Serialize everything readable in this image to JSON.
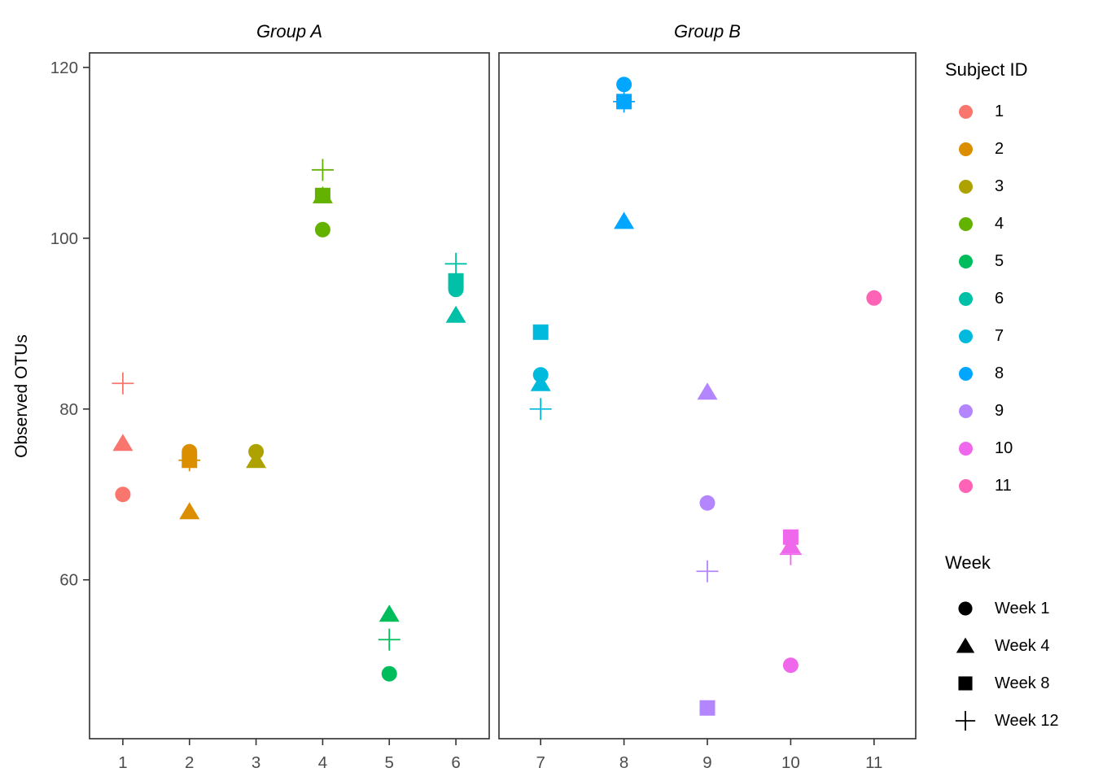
{
  "chart_data": {
    "type": "scatter",
    "title": "",
    "xlabel": "",
    "ylabel": "Observed OTUs",
    "ylim": [
      41.4,
      121.7
    ],
    "yticks": [
      60,
      80,
      100,
      120
    ],
    "grid": "off",
    "legend_position": "right",
    "facets": [
      {
        "label": "Group A",
        "subjects": [
          "1",
          "2",
          "3",
          "4",
          "5",
          "6"
        ]
      },
      {
        "label": "Group B",
        "subjects": [
          "7",
          "8",
          "9",
          "10",
          "11"
        ]
      }
    ],
    "weeks": [
      {
        "name": "Week 1",
        "shape": "circle"
      },
      {
        "name": "Week 4",
        "shape": "triangle"
      },
      {
        "name": "Week 8",
        "shape": "square"
      },
      {
        "name": "Week 12",
        "shape": "plus"
      }
    ],
    "subjects": [
      {
        "id": "1",
        "facet": 0,
        "color": "#F8766D",
        "values": {
          "Week 1": 70,
          "Week 4": 76,
          "Week 12": 83
        }
      },
      {
        "id": "2",
        "facet": 0,
        "color": "#DB8E00",
        "values": {
          "Week 1": 75,
          "Week 4": 68,
          "Week 8": 74,
          "Week 12": 74
        }
      },
      {
        "id": "3",
        "facet": 0,
        "color": "#AEA200",
        "values": {
          "Week 1": 75,
          "Week 4": 74
        }
      },
      {
        "id": "4",
        "facet": 0,
        "color": "#64B200",
        "values": {
          "Week 1": 101,
          "Week 4": 105,
          "Week 8": 105,
          "Week 12": 108
        }
      },
      {
        "id": "5",
        "facet": 0,
        "color": "#00BD5C",
        "values": {
          "Week 1": 49,
          "Week 4": 56,
          "Week 12": 53
        }
      },
      {
        "id": "6",
        "facet": 0,
        "color": "#00C1A7",
        "values": {
          "Week 1": 94,
          "Week 4": 91,
          "Week 8": 95,
          "Week 12": 97
        }
      },
      {
        "id": "7",
        "facet": 1,
        "color": "#00BADE",
        "values": {
          "Week 1": 84,
          "Week 4": 83,
          "Week 8": 89,
          "Week 12": 80
        }
      },
      {
        "id": "8",
        "facet": 1,
        "color": "#00A6FF",
        "values": {
          "Week 1": 118,
          "Week 4": 102,
          "Week 8": 116,
          "Week 12": 116
        }
      },
      {
        "id": "9",
        "facet": 1,
        "color": "#B385FF",
        "values": {
          "Week 1": 69,
          "Week 4": 82,
          "Week 8": 45,
          "Week 12": 61
        }
      },
      {
        "id": "10",
        "facet": 1,
        "color": "#EF67EB",
        "values": {
          "Week 1": 50,
          "Week 4": 64,
          "Week 8": 65,
          "Week 12": 63
        }
      },
      {
        "id": "11",
        "facet": 1,
        "color": "#FF63B6",
        "values": {
          "Week 1": 93
        }
      }
    ],
    "legend": {
      "subject_title": "Subject ID",
      "week_title": "Week"
    },
    "style": {
      "panel_border_color": "#2E2E2E",
      "tick_color": "#333333",
      "tick_label_color": "#4D4D4D",
      "background": "#FFFFFF",
      "legend_symbol_color": "#000000"
    }
  }
}
